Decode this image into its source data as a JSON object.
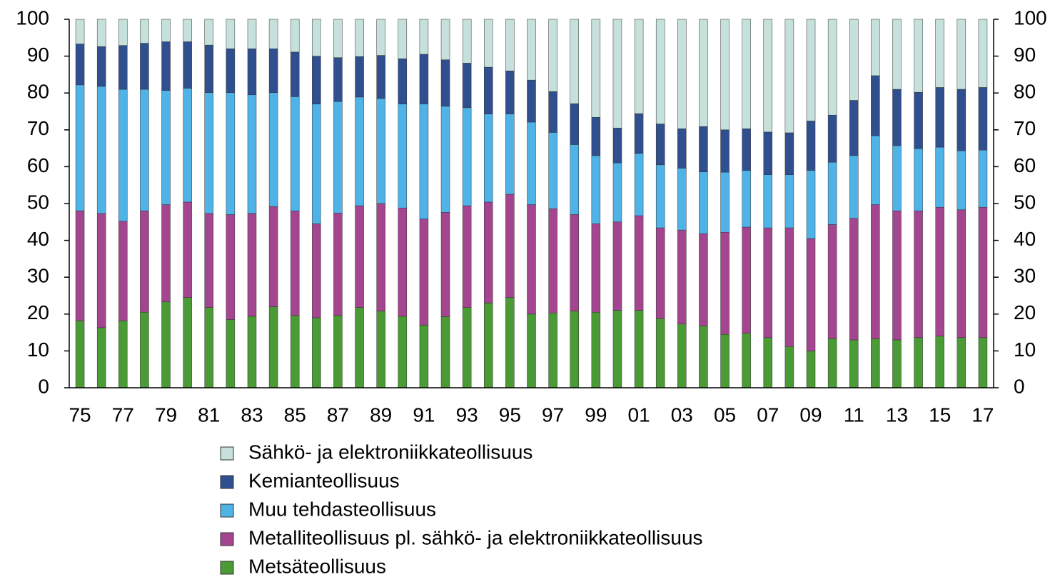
{
  "chart_data": {
    "type": "stacked_bar",
    "categories": [
      "75",
      null,
      "77",
      null,
      "79",
      null,
      "81",
      null,
      "83",
      null,
      "85",
      null,
      "87",
      null,
      "89",
      null,
      "91",
      null,
      "93",
      null,
      "95",
      null,
      "97",
      null,
      "99",
      null,
      "01",
      null,
      "03",
      null,
      "05",
      null,
      "07",
      null,
      "09",
      null,
      "11",
      null,
      "13",
      null,
      "15",
      null,
      "17"
    ],
    "series": [
      {
        "name": "Metsäteollisuus",
        "color": "#4a9a35",
        "values": [
          18.2,
          16.3,
          18.2,
          20.5,
          23.3,
          24.5,
          21.8,
          18.5,
          19.4,
          22.0,
          19.6,
          19.0,
          19.6,
          21.8,
          20.8,
          19.4,
          17.0,
          19.3,
          21.8,
          23.0,
          24.5,
          20.0,
          20.3,
          20.8,
          20.5,
          21.0,
          21.0,
          18.8,
          17.3,
          16.8,
          14.5,
          14.8,
          13.6,
          11.2,
          10.0,
          13.3,
          13.0,
          13.3,
          13.0,
          13.6,
          14.0,
          13.6,
          13.6
        ]
      },
      {
        "name": "Metalliteollisuus pl. sähkö- ja elektroniikkateollisuus",
        "color": "#a3458f",
        "values": [
          29.8,
          31.0,
          27.0,
          27.5,
          26.4,
          25.9,
          25.5,
          28.5,
          27.9,
          27.2,
          28.4,
          25.5,
          27.8,
          27.6,
          29.2,
          29.4,
          28.8,
          28.3,
          27.6,
          27.4,
          28.0,
          29.7,
          28.3,
          26.2,
          24.0,
          24.0,
          25.7,
          24.6,
          25.5,
          25.0,
          27.7,
          28.8,
          29.8,
          32.2,
          30.5,
          31.0,
          33.0,
          36.4,
          35.0,
          34.4,
          35.0,
          34.7,
          35.4
        ]
      },
      {
        "name": "Muu tehdasteollisuus",
        "color": "#4fb3e8",
        "values": [
          34.2,
          34.5,
          35.8,
          33.0,
          31.0,
          30.9,
          32.8,
          33.1,
          32.2,
          30.9,
          31.0,
          32.5,
          30.3,
          29.5,
          28.5,
          28.2,
          31.2,
          28.8,
          26.6,
          23.9,
          21.8,
          22.4,
          20.7,
          19.0,
          18.5,
          16.0,
          16.9,
          17.1,
          16.8,
          16.8,
          16.3,
          15.4,
          14.4,
          14.4,
          18.5,
          16.9,
          17.0,
          18.7,
          17.7,
          16.9,
          16.3,
          16.0,
          15.5
        ]
      },
      {
        "name": "Kemianteollisuus",
        "color": "#2f4f8f",
        "values": [
          11.1,
          10.8,
          11.9,
          12.5,
          13.2,
          12.6,
          12.9,
          11.9,
          12.5,
          11.9,
          12.1,
          13.0,
          11.9,
          11.0,
          11.7,
          12.3,
          13.5,
          12.6,
          12.1,
          12.7,
          11.7,
          11.4,
          11.1,
          11.1,
          10.4,
          9.5,
          10.8,
          11.1,
          10.7,
          12.3,
          11.5,
          11.3,
          11.6,
          11.4,
          13.4,
          12.8,
          15.0,
          16.3,
          15.3,
          15.3,
          16.2,
          16.7,
          17.0
        ]
      },
      {
        "name": "Sähkö- ja elektroniikkateollisuus",
        "color": "#c6e0dc",
        "values": [
          6.7,
          7.4,
          7.1,
          6.5,
          6.1,
          6.1,
          7.0,
          8.0,
          8.0,
          8.0,
          8.9,
          10.0,
          10.4,
          10.1,
          9.8,
          10.7,
          9.5,
          11.0,
          11.9,
          13.0,
          14.0,
          16.5,
          19.6,
          22.9,
          26.6,
          29.5,
          25.6,
          28.4,
          29.7,
          29.1,
          30.0,
          29.7,
          30.6,
          30.8,
          27.6,
          26.0,
          22.0,
          15.3,
          19.0,
          19.8,
          18.5,
          19.0,
          18.5
        ]
      }
    ],
    "ylim": [
      0,
      100
    ],
    "yticks": [
      0,
      10,
      20,
      30,
      40,
      50,
      60,
      70,
      80,
      90,
      100
    ],
    "y2lim": [
      0,
      100
    ],
    "y2ticks": [
      0,
      10,
      20,
      30,
      40,
      50,
      60,
      70,
      80,
      90,
      100
    ],
    "legend": "bottom"
  }
}
